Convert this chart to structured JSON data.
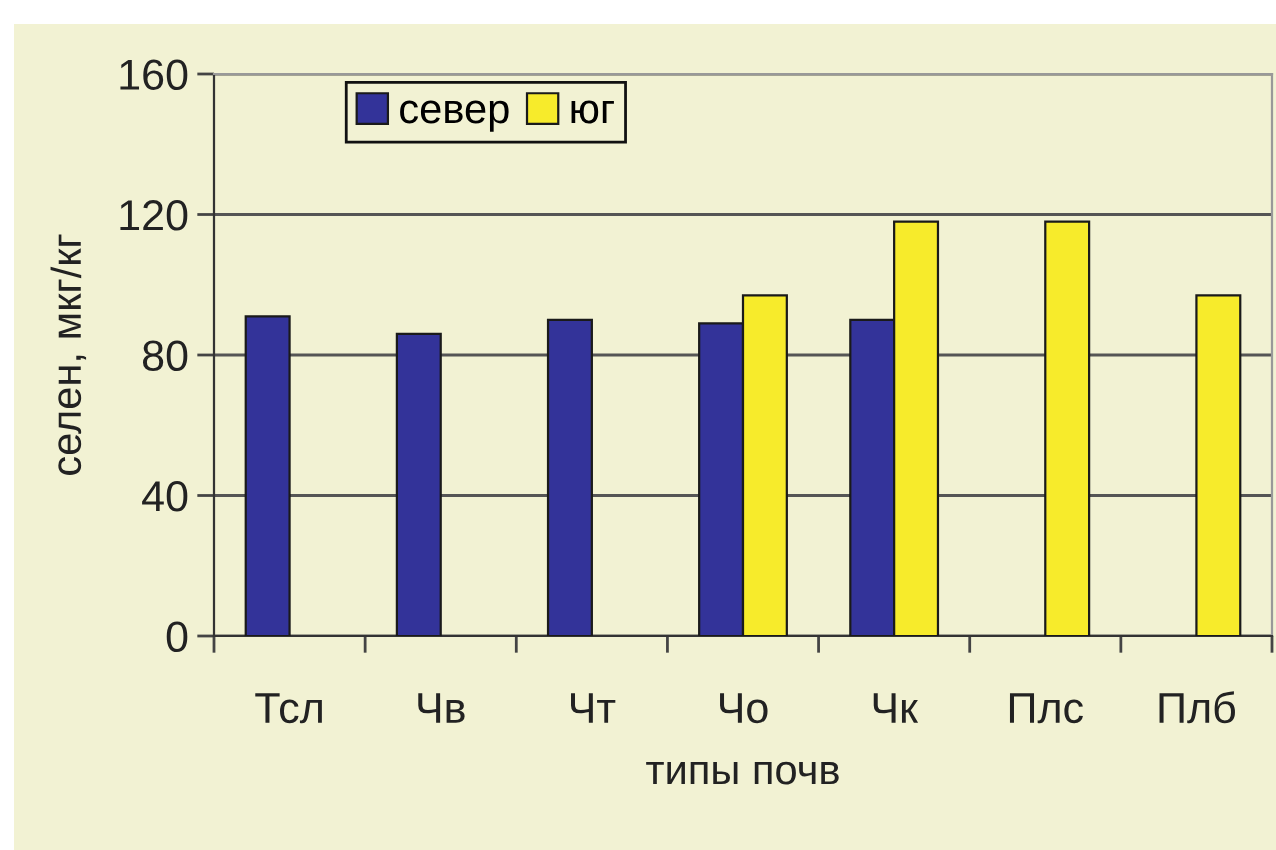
{
  "chart_data": {
    "type": "bar",
    "xlabel": "типы почв",
    "ylabel": "селен, мкг/кг",
    "categories": [
      "Тсл",
      "Чв",
      "Чт",
      "Чо",
      "Чк",
      "Плс",
      "Плб"
    ],
    "series": [
      {
        "name": "север",
        "color": "#333399",
        "values": [
          91,
          86,
          90,
          89,
          90,
          null,
          null
        ]
      },
      {
        "name": "юг",
        "color": "#f7eb2b",
        "values": [
          null,
          null,
          null,
          97,
          118,
          118,
          97
        ]
      }
    ],
    "ylim": [
      0,
      160
    ],
    "yticks": [
      0,
      40,
      80,
      120,
      160
    ],
    "grid": "y",
    "legend": "top left"
  }
}
